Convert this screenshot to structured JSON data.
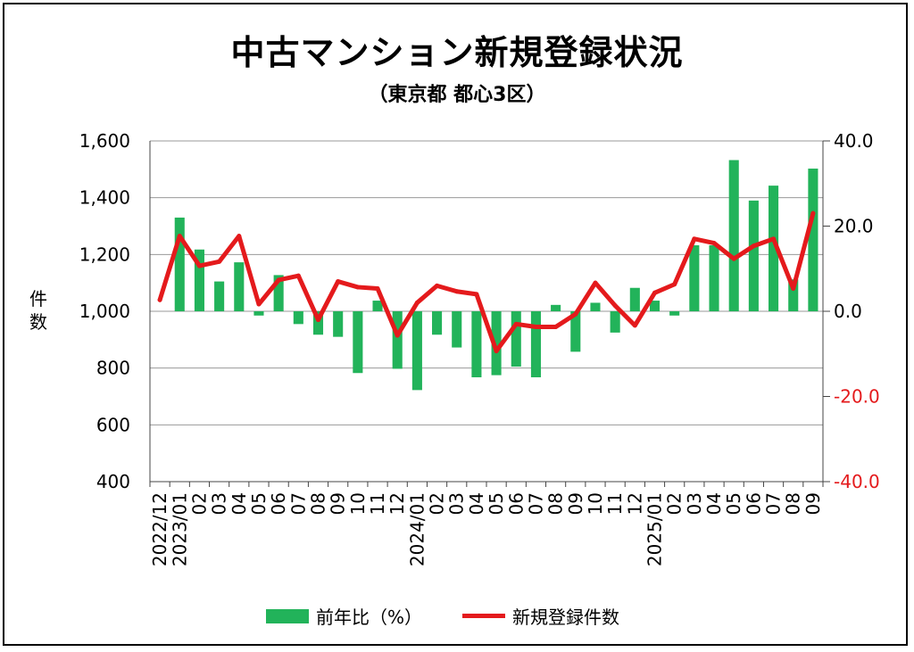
{
  "chart_data": {
    "type": "bar+line",
    "title": "中古マンション新規登録状況",
    "subtitle": "（東京都 都心3区）",
    "ylabel_left": "件数",
    "categories": [
      "2022/12",
      "2023/01",
      "02",
      "03",
      "04",
      "05",
      "06",
      "07",
      "08",
      "09",
      "10",
      "11",
      "12",
      "2024/01",
      "02",
      "03",
      "04",
      "05",
      "06",
      "07",
      "08",
      "09",
      "10",
      "11",
      "12",
      "2025/01",
      "02",
      "03",
      "04",
      "05",
      "06",
      "07",
      "08",
      "09"
    ],
    "series": [
      {
        "name": "前年比（%）",
        "kind": "bar",
        "axis": "right",
        "color": "#22b35a",
        "values": [
          null,
          22.0,
          14.5,
          7.0,
          11.5,
          -1.0,
          8.5,
          -3.0,
          -5.5,
          -6.0,
          -14.5,
          2.5,
          -13.5,
          -18.5,
          -5.5,
          -8.5,
          -15.5,
          -15.0,
          -13.0,
          -15.5,
          1.5,
          -9.5,
          2.0,
          -5.0,
          5.5,
          2.5,
          -1.0,
          15.5,
          15.5,
          35.5,
          26.0,
          29.5,
          7.5,
          33.5
        ]
      },
      {
        "name": "新規登録件数",
        "kind": "line",
        "axis": "left",
        "color": "#e41a1c",
        "values": [
          1040,
          1265,
          1160,
          1175,
          1265,
          1025,
          1110,
          1125,
          970,
          1105,
          1085,
          1080,
          915,
          1030,
          1090,
          1070,
          1060,
          860,
          955,
          945,
          945,
          990,
          1100,
          1020,
          950,
          1065,
          1095,
          1255,
          1240,
          1185,
          1230,
          1255,
          1080,
          1345
        ]
      }
    ],
    "left_axis": {
      "min": 400,
      "max": 1600,
      "ticks": [
        "1,600",
        "1,400",
        "1,200",
        "1,000",
        "800",
        "600",
        "400"
      ]
    },
    "right_axis": {
      "min": -40,
      "max": 40,
      "ticks": [
        "40.0",
        "20.0",
        "0.0",
        "-20.0",
        "-40.0"
      ],
      "negative_color": "#e41a1c"
    },
    "grid": "horizontal",
    "legend": "bottom"
  }
}
